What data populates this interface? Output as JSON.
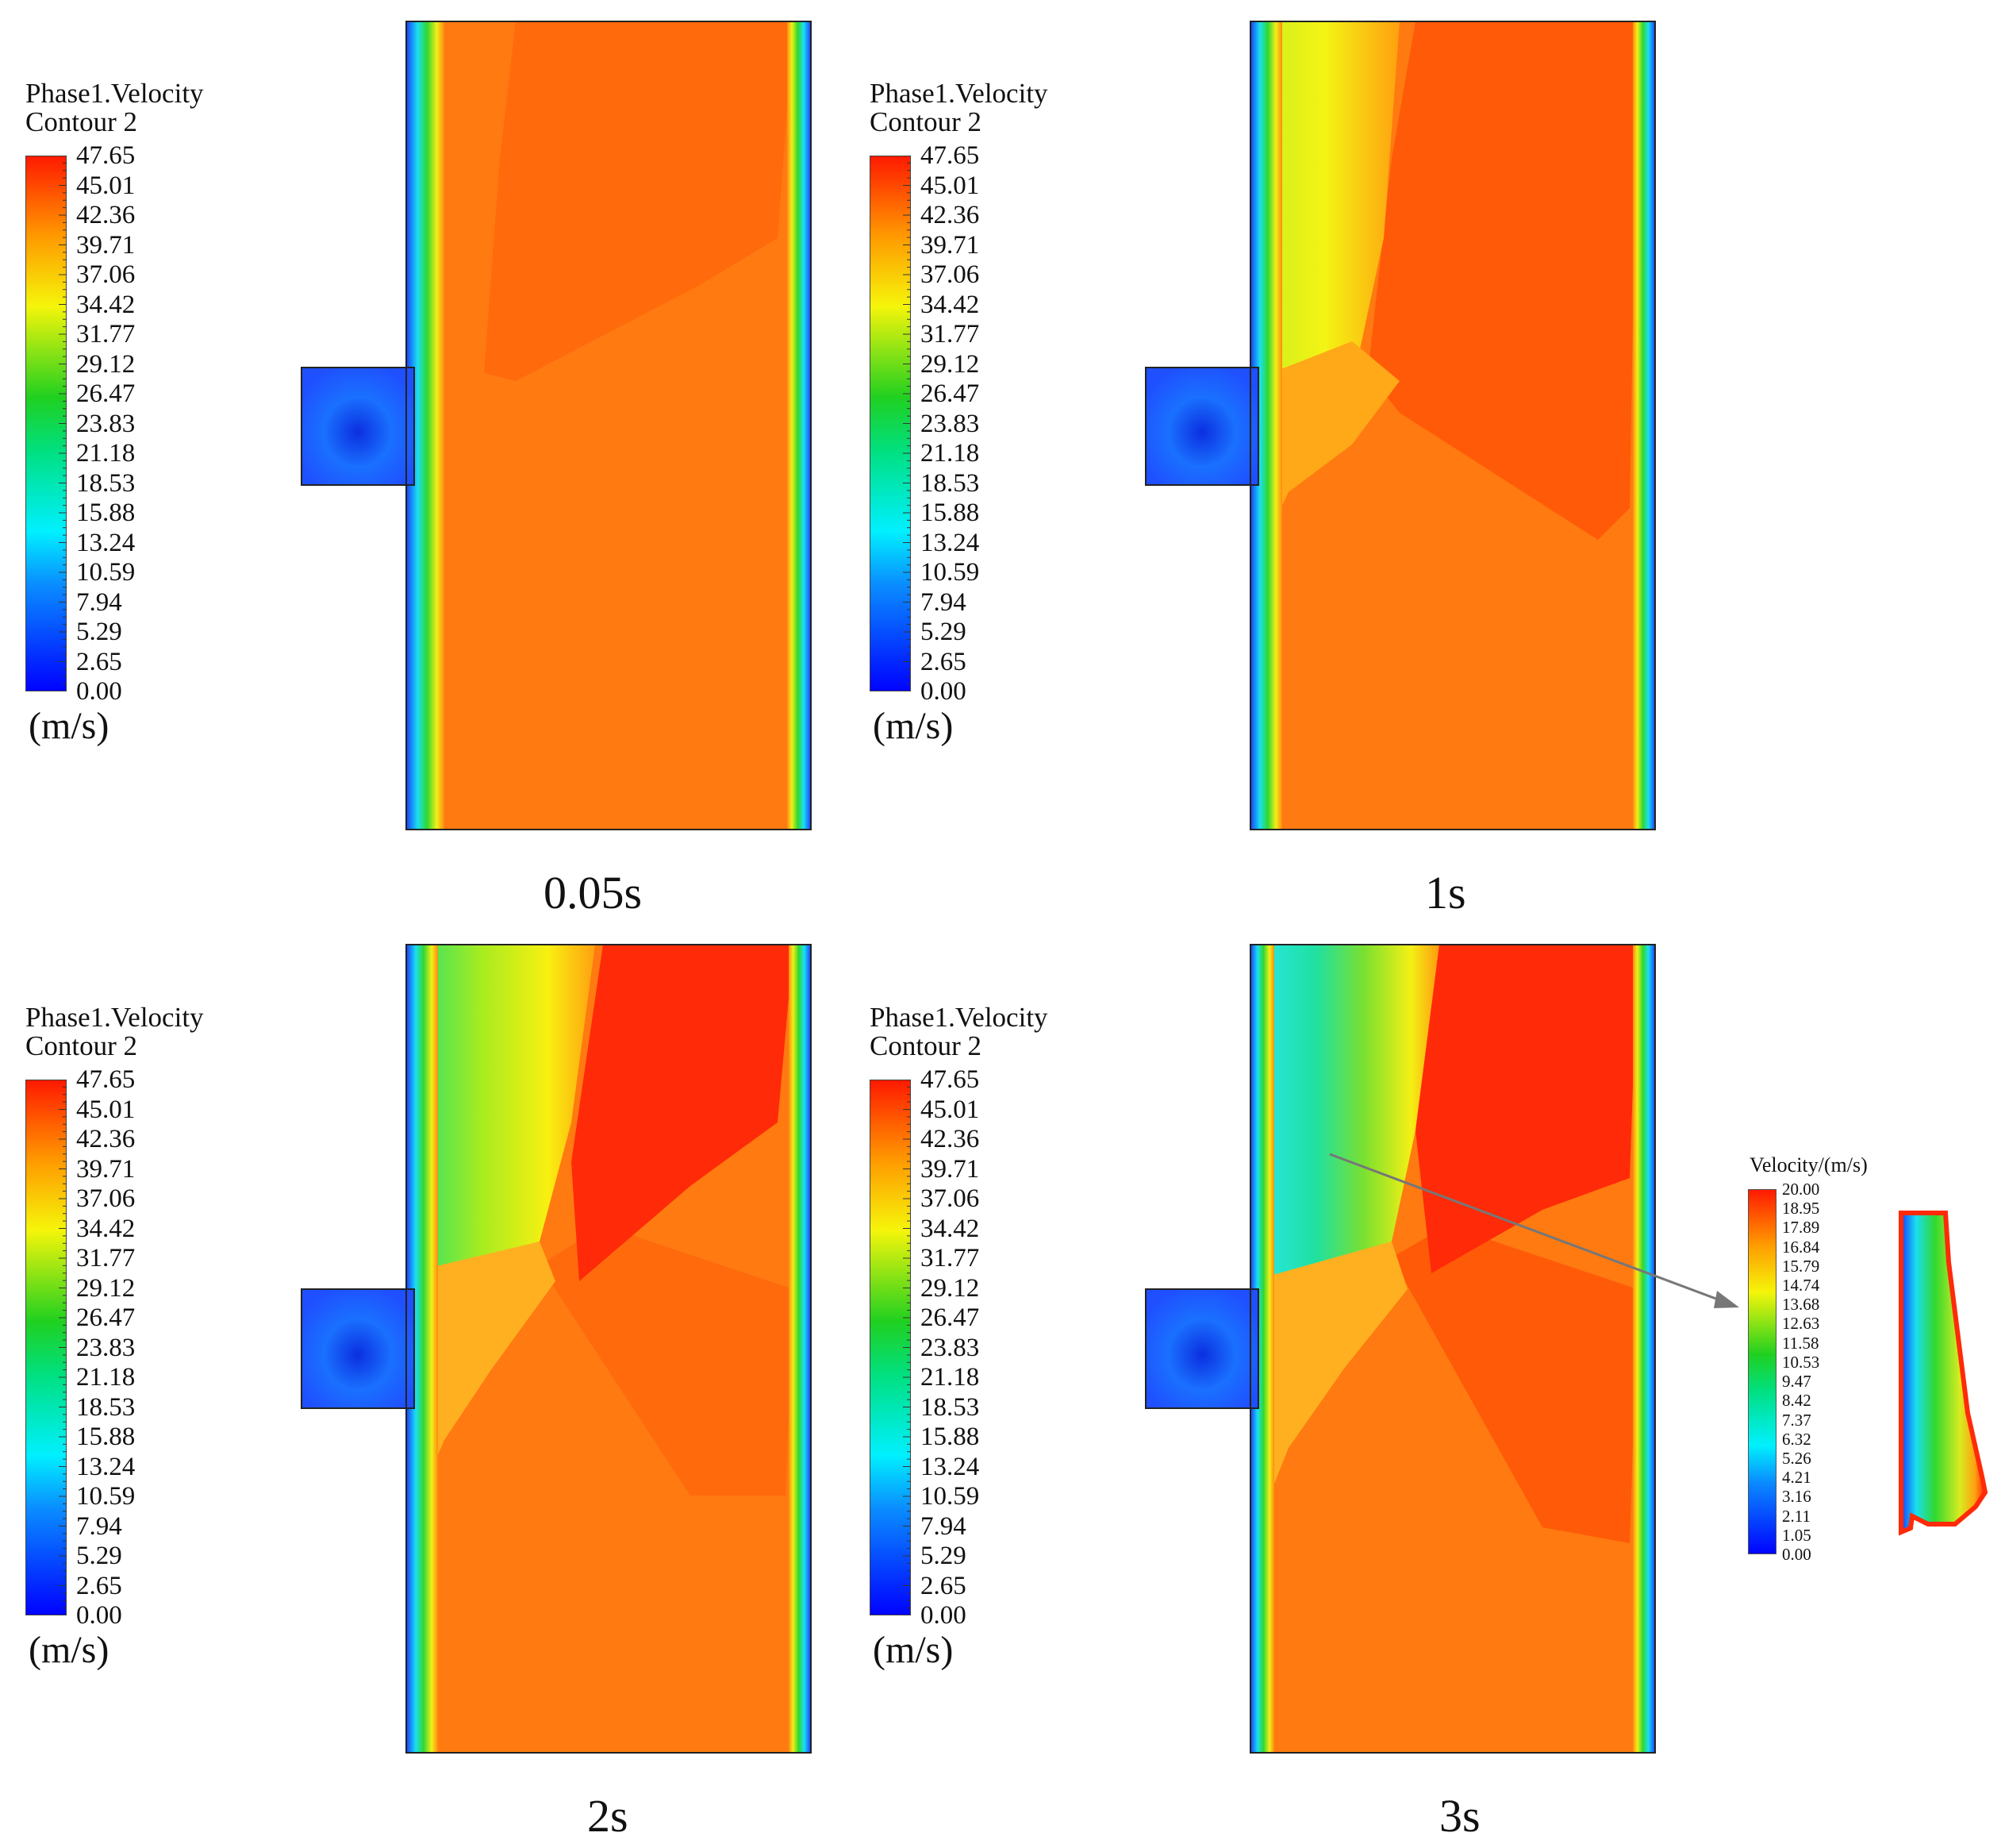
{
  "legend": {
    "title_line1": "Phase1.Velocity",
    "title_line2": "Contour 2",
    "ticks": [
      "47.65",
      "45.01",
      "42.36",
      "39.71",
      "37.06",
      "34.42",
      "31.77",
      "29.12",
      "26.47",
      "23.83",
      "21.18",
      "18.53",
      "15.88",
      "13.24",
      "10.59",
      "7.94",
      "5.29",
      "2.65",
      "0.00"
    ],
    "unit": "(m/s)"
  },
  "panels": [
    {
      "time": "0.05s"
    },
    {
      "time": "1s"
    },
    {
      "time": "2s"
    },
    {
      "time": "3s"
    }
  ],
  "inset": {
    "title": "Velocity/(m/s)",
    "ticks": [
      "20.00",
      "18.95",
      "17.89",
      "16.84",
      "15.79",
      "14.74",
      "13.68",
      "12.63",
      "11.58",
      "10.53",
      "9.47",
      "8.42",
      "7.37",
      "6.32",
      "5.26",
      "4.21",
      "3.16",
      "2.11",
      "1.05",
      "0.00"
    ]
  },
  "colors": {
    "orange": "#ff7a10",
    "dark_orange": "#ff5a08",
    "red": "#ff2a08",
    "blue": "#1f4fff",
    "cyan": "#19e6f2",
    "green": "#27d63a",
    "yellow": "#f4f414"
  }
}
